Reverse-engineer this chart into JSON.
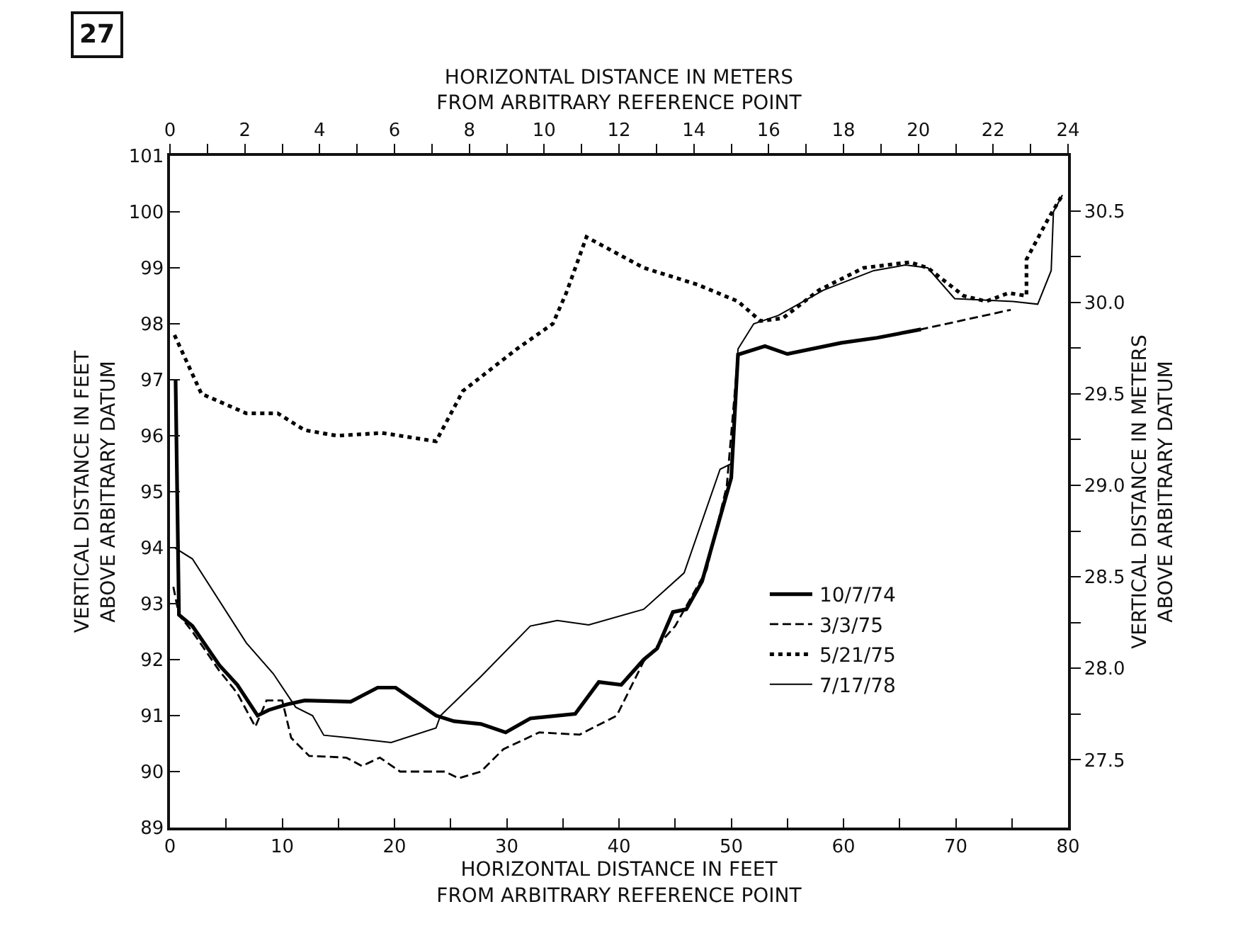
{
  "chart_data": {
    "type": "line",
    "xlabel": "HORIZONTAL DISTANCE IN FEET\nFROM ARBITRARY REFERENCE POINT",
    "x2label": "HORIZONTAL DISTANCE IN METERS\nFROM ARBITRARY REFERENCE POINT",
    "ylabel": "VERTICAL DISTANCE IN FEET\nABOVE ARBITRARY DATUM",
    "y2label": "VERTICAL DISTANCE IN METERS\nABOVE ARBITRARY DATUM",
    "annotations": [
      "27"
    ],
    "xlim": [
      0,
      80
    ],
    "xticks": [
      0,
      {
        "value": 5,
        "label": null
      },
      10,
      {
        "value": 15,
        "label": null
      },
      20,
      {
        "value": 25,
        "label": null
      },
      30,
      {
        "value": 35,
        "label": null
      },
      40,
      {
        "value": 45,
        "label": null
      },
      50,
      {
        "value": 55,
        "label": null
      },
      60,
      {
        "value": 65,
        "label": null
      },
      70,
      {
        "value": 75,
        "label": null
      },
      80
    ],
    "x2lim": [
      0,
      24
    ],
    "x2ticks": [
      0,
      {
        "value": 1,
        "label": null
      },
      2,
      {
        "value": 3,
        "label": null
      },
      4,
      {
        "value": 5,
        "label": null
      },
      6,
      {
        "value": 7,
        "label": null
      },
      8,
      {
        "value": 9,
        "label": null
      },
      10,
      {
        "value": 11,
        "label": null
      },
      12,
      {
        "value": 13,
        "label": null
      },
      14,
      {
        "value": 15,
        "label": null
      },
      16,
      {
        "value": 17,
        "label": null
      },
      18,
      {
        "value": 19,
        "label": null
      },
      20,
      {
        "value": 21,
        "label": null
      },
      22,
      {
        "value": 23,
        "label": null
      },
      24
    ],
    "ylim": [
      89,
      101
    ],
    "yticks": [
      89,
      90,
      91,
      92,
      93,
      94,
      95,
      96,
      97,
      98,
      99,
      100,
      101
    ],
    "y2lim": [
      27.13,
      30.8
    ],
    "y2ticks": [
      27.5,
      {
        "value": 27.75,
        "label": null
      },
      {
        "value": 28.0,
        "label": "28.0"
      },
      {
        "value": 28.25,
        "label": null
      },
      28.5,
      {
        "value": 28.75,
        "label": null
      },
      {
        "value": 29.0,
        "label": "29.0"
      },
      {
        "value": 29.25,
        "label": null
      },
      29.5,
      {
        "value": 29.75,
        "label": null
      },
      {
        "value": 30.0,
        "label": "30.0"
      },
      {
        "value": 30.25,
        "label": null
      },
      30.5
    ],
    "legend": "bottom right",
    "marker": "none",
    "series": [
      {
        "name": "10/7/74",
        "color": "#000000",
        "line_style": "solid",
        "x": [
          0.5,
          0.8,
          2.0,
          4.4,
          6.0,
          7.8,
          8.8,
          10.4,
          12.0,
          16.1,
          18.5,
          20.1,
          23.7,
          25.3,
          27.7,
          29.9,
          32.1,
          36.1,
          38.2,
          40.2,
          42.2,
          43.4,
          44.8,
          46.0,
          47.4,
          50.0,
          50.6,
          53.0,
          55.0,
          59.8,
          63.0,
          66.9
        ],
        "values": [
          97.0,
          92.8,
          92.6,
          91.9,
          91.55,
          91.0,
          91.1,
          91.2,
          91.27,
          91.25,
          91.5,
          91.5,
          91.0,
          90.9,
          90.85,
          90.7,
          90.95,
          91.03,
          91.6,
          91.55,
          92.0,
          92.2,
          92.85,
          92.9,
          93.4,
          95.25,
          97.45,
          97.6,
          97.46,
          97.66,
          97.75,
          97.9
        ]
      },
      {
        "name": "3/3/75",
        "color": "#000000",
        "line_style": "dashed",
        "x": [
          0.3,
          0.8,
          2.0,
          4.4,
          6.0,
          7.6,
          8.6,
          10.0,
          10.8,
          12.4,
          15.7,
          17.1,
          18.7,
          20.5,
          24.5,
          25.7,
          27.7,
          29.7,
          32.9,
          36.5,
          39.8,
          42.2,
          45.0,
          47.8,
          49.6,
          50.6,
          53.0,
          55.0,
          59.8,
          63.0,
          66.9,
          74.9
        ],
        "values": [
          93.3,
          92.8,
          92.5,
          91.8,
          91.4,
          90.8,
          91.27,
          91.27,
          90.6,
          90.28,
          90.25,
          90.1,
          90.25,
          90.0,
          90.0,
          89.88,
          90.0,
          90.4,
          90.7,
          90.66,
          91.0,
          91.97,
          92.6,
          93.6,
          95.1,
          97.45,
          97.6,
          97.46,
          97.66,
          97.75,
          97.9,
          98.25
        ]
      },
      {
        "name": "5/21/75",
        "color": "#000000",
        "line_style": "dotted",
        "x": [
          0.4,
          2.8,
          6.8,
          9.6,
          12.0,
          14.9,
          18.9,
          23.7,
          26.1,
          29.3,
          30.9,
          34.1,
          35.3,
          37.1,
          42.2,
          47.0,
          50.6,
          52.6,
          54.6,
          57.8,
          61.8,
          65.9,
          67.5,
          70.7,
          72.7,
          74.7,
          76.3,
          76.3,
          78.3,
          79.5
        ],
        "values": [
          97.8,
          96.75,
          96.4,
          96.4,
          96.1,
          96.0,
          96.05,
          95.9,
          96.8,
          97.3,
          97.55,
          98.0,
          98.55,
          99.55,
          99.0,
          98.7,
          98.4,
          98.05,
          98.1,
          98.6,
          99.0,
          99.1,
          99.0,
          98.5,
          98.4,
          98.55,
          98.5,
          99.15,
          99.9,
          100.3
        ]
      },
      {
        "name": "7/17/78",
        "color": "#000000",
        "line_style": "solid",
        "x": [
          0.4,
          2.0,
          6.8,
          9.2,
          11.2,
          12.7,
          13.7,
          16.1,
          19.7,
          23.7,
          24.1,
          27.7,
          32.1,
          34.5,
          37.3,
          42.2,
          45.8,
          49.0,
          50.0,
          50.6,
          52.0,
          54.2,
          58.2,
          62.7,
          65.5,
          67.5,
          69.9,
          75.1,
          77.3,
          78.5,
          78.7,
          79.5
        ],
        "values": [
          94.0,
          93.8,
          92.3,
          91.75,
          91.15,
          91.0,
          90.65,
          90.6,
          90.52,
          90.78,
          91.0,
          91.7,
          92.6,
          92.7,
          92.62,
          92.9,
          93.55,
          95.4,
          95.5,
          97.55,
          98.0,
          98.15,
          98.6,
          98.95,
          99.05,
          99.0,
          98.45,
          98.4,
          98.35,
          98.95,
          100.0,
          100.3
        ]
      }
    ]
  }
}
